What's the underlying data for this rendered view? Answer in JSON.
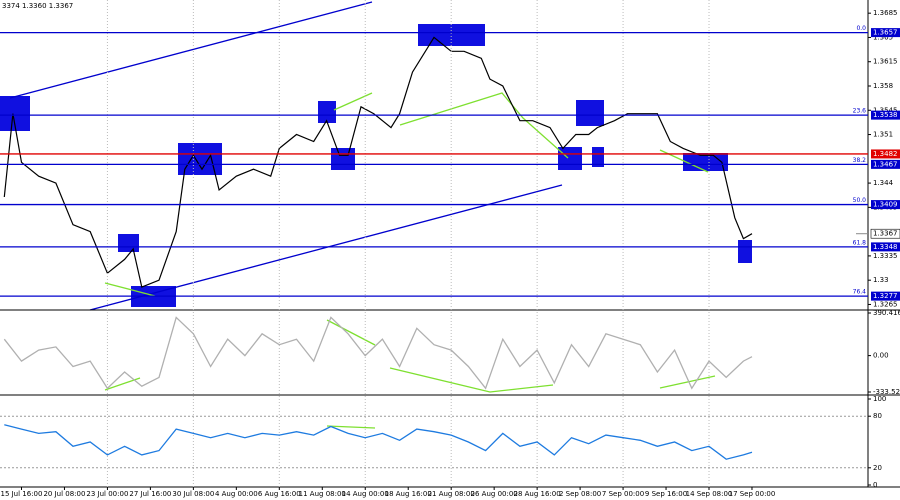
{
  "chart_data": [
    {
      "type": "line",
      "info": "3374 1.3360 1.3367",
      "color": "#000000",
      "x": [
        -4,
        -2,
        0,
        4,
        8,
        12,
        16,
        20,
        24,
        26,
        28,
        32,
        36,
        38,
        40,
        42,
        44,
        46,
        50,
        54,
        58,
        60,
        64,
        68,
        71,
        74,
        76,
        79,
        82,
        86,
        88,
        91,
        94,
        96,
        100,
        103,
        107,
        109,
        112,
        116,
        119,
        123,
        126,
        129,
        132,
        134,
        138,
        141,
        145,
        148,
        151,
        154,
        158,
        161,
        163,
        166,
        168,
        170
      ],
      "values": [
        1.342,
        1.354,
        1.347,
        1.345,
        1.344,
        1.338,
        1.337,
        1.331,
        1.333,
        1.3345,
        1.329,
        1.33,
        1.337,
        1.346,
        1.348,
        1.346,
        1.348,
        1.343,
        1.345,
        1.346,
        1.345,
        1.349,
        1.351,
        1.35,
        1.353,
        1.348,
        1.348,
        1.355,
        1.354,
        1.352,
        1.354,
        1.36,
        1.363,
        1.365,
        1.363,
        1.363,
        1.362,
        1.359,
        1.358,
        1.353,
        1.353,
        1.352,
        1.349,
        1.351,
        1.351,
        1.352,
        1.353,
        1.354,
        1.354,
        1.354,
        1.35,
        1.349,
        1.348,
        1.348,
        1.347,
        1.339,
        1.336,
        1.3367
      ],
      "xlim": [
        -5,
        197
      ],
      "ylim": [
        1.3257,
        1.3704
      ],
      "yticks": [
        1.3685,
        1.365,
        1.3615,
        1.358,
        1.3545,
        1.351,
        1.344,
        1.3405,
        1.3335,
        1.33,
        1.3265
      ],
      "grid": true,
      "xticks": [
        {
          "value": 0,
          "label": "15 Jul 16:00"
        },
        {
          "value": 10,
          "label": "20 Jul 08:00"
        },
        {
          "value": 20,
          "label": "23 Jul 00:00"
        },
        {
          "value": 30,
          "label": "27 Jul 16:00"
        },
        {
          "value": 40,
          "label": "30 Jul 08:00"
        },
        {
          "value": 50,
          "label": "4 Aug 00:00"
        },
        {
          "value": 60,
          "label": "6 Aug 16:00"
        },
        {
          "value": 70,
          "label": "11 Aug 08:00"
        },
        {
          "value": 80,
          "label": "14 Aug 00:00"
        },
        {
          "value": 90,
          "label": "18 Aug 16:00"
        },
        {
          "value": 100,
          "label": "21 Aug 08:00"
        },
        {
          "value": 110,
          "label": "26 Aug 00:00"
        },
        {
          "value": 120,
          "label": "28 Aug 16:00"
        },
        {
          "value": 130,
          "label": "2 Sep 08:00"
        },
        {
          "value": 140,
          "label": "7 Sep 00:00"
        },
        {
          "value": 150,
          "label": "9 Sep 16:00"
        },
        {
          "value": 160,
          "label": "14 Sep 08:00"
        },
        {
          "value": 170,
          "label": "17 Sep 00:00"
        }
      ],
      "levels": [
        {
          "value": 1.3657,
          "fib": "0.0",
          "color": "#0000cd"
        },
        {
          "value": 1.3538,
          "fib": "23.6",
          "color": "#0000cd"
        },
        {
          "value": 1.3482,
          "color": "#e00000"
        },
        {
          "value": 1.3467,
          "fib": "38.2",
          "color": "#0000cd"
        },
        {
          "value": 1.3409,
          "fib": "50.0",
          "color": "#0000cd"
        },
        {
          "value": 1.3348,
          "fib": "61.8",
          "color": "#0000cd"
        },
        {
          "value": 1.3277,
          "fib": "76.4",
          "color": "#0000cd"
        }
      ],
      "last": 1.3367
    },
    {
      "type": "line",
      "color": "#b0b0b0",
      "x": [
        -4,
        0,
        4,
        8,
        12,
        16,
        20,
        24,
        28,
        32,
        36,
        40,
        44,
        48,
        52,
        56,
        60,
        64,
        68,
        72,
        76,
        80,
        84,
        88,
        92,
        96,
        100,
        104,
        108,
        112,
        116,
        120,
        124,
        128,
        132,
        136,
        140,
        144,
        148,
        152,
        156,
        160,
        164,
        168,
        170
      ],
      "values": [
        150,
        -50,
        50,
        80,
        -100,
        -50,
        -300,
        -150,
        -280,
        -200,
        350,
        200,
        -100,
        150,
        0,
        200,
        100,
        150,
        -50,
        350,
        200,
        0,
        150,
        -100,
        250,
        100,
        50,
        -100,
        -300,
        150,
        -100,
        50,
        -250,
        100,
        -100,
        200,
        150,
        100,
        -150,
        50,
        -300,
        -50,
        -200,
        -50,
        -10
      ],
      "ylim": [
        -333.522,
        390.4163
      ],
      "yticks": [
        390.4163,
        {
          "value": 0,
          "label": "0.00"
        },
        -333.522
      ]
    },
    {
      "type": "line",
      "color": "#1e7be0",
      "x": [
        -4,
        0,
        4,
        8,
        12,
        16,
        20,
        24,
        28,
        32,
        36,
        40,
        44,
        48,
        52,
        56,
        60,
        64,
        68,
        72,
        76,
        80,
        84,
        88,
        92,
        96,
        100,
        104,
        108,
        112,
        116,
        120,
        124,
        128,
        132,
        136,
        140,
        144,
        148,
        152,
        156,
        160,
        164,
        168,
        170
      ],
      "values": [
        70,
        65,
        60,
        62,
        45,
        50,
        35,
        45,
        35,
        40,
        65,
        60,
        55,
        60,
        55,
        60,
        58,
        62,
        58,
        68,
        60,
        55,
        60,
        52,
        65,
        62,
        58,
        50,
        40,
        60,
        45,
        50,
        35,
        55,
        48,
        58,
        55,
        52,
        45,
        50,
        40,
        45,
        30,
        35,
        38
      ],
      "ylim": [
        0,
        100
      ],
      "yticks": [
        100,
        80,
        20,
        0
      ],
      "levels": [
        80,
        20
      ]
    }
  ]
}
